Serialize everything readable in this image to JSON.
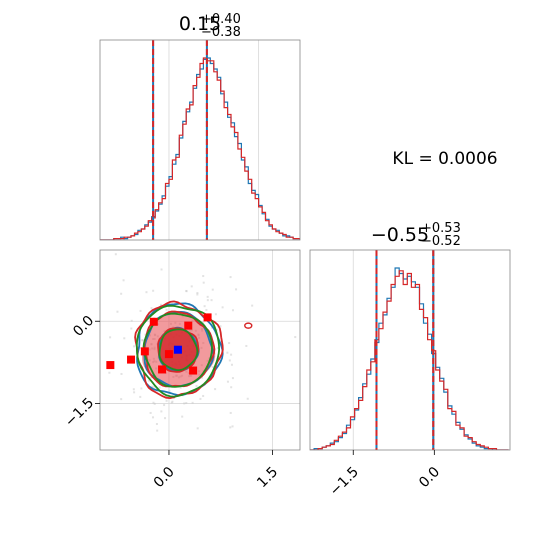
{
  "chart_data": [
    {
      "type": "histogram",
      "panel": "marginal-param-1",
      "title": {
        "median": "0.15",
        "upper": "+0.40",
        "lower": "−0.38"
      },
      "xlim": [
        -1.0,
        1.9
      ],
      "quantile_lines": [
        -0.23,
        0.55
      ],
      "grid": true,
      "series": [
        {
          "name": "",
          "color": "#1f77b4",
          "bins_x0": -1.0,
          "bin_width": 0.05,
          "values": [
            0,
            0,
            0,
            0,
            1,
            1,
            2,
            1,
            2,
            3,
            4,
            7,
            8,
            11,
            13,
            17,
            21,
            26,
            32,
            39,
            46,
            55,
            62,
            74,
            86,
            93,
            100,
            110,
            120,
            124,
            131,
            132,
            128,
            124,
            118,
            106,
            100,
            89,
            85,
            75,
            70,
            58,
            53,
            41,
            36,
            33,
            25,
            19,
            15,
            10,
            8,
            7,
            5,
            3,
            3,
            2,
            1,
            1,
            0
          ]
        },
        {
          "name": "",
          "color": "#d62728",
          "bins_x0": -1.0,
          "bin_width": 0.05,
          "values": [
            0,
            0,
            0,
            0,
            1,
            1,
            1,
            2,
            2,
            3,
            5,
            6,
            8,
            10,
            14,
            16,
            22,
            27,
            30,
            41,
            44,
            58,
            60,
            76,
            84,
            95,
            98,
            112,
            118,
            128,
            132,
            130,
            130,
            122,
            116,
            108,
            96,
            91,
            82,
            78,
            66,
            60,
            50,
            44,
            34,
            30,
            24,
            20,
            14,
            11,
            8,
            6,
            5,
            4,
            2,
            2,
            1,
            1,
            0
          ]
        }
      ]
    },
    {
      "type": "contour",
      "panel": "joint-param-1-param-2",
      "xlim": [
        -1.0,
        1.9
      ],
      "ylim": [
        -2.35,
        1.3
      ],
      "x_ticks": [
        "0.0",
        "1.5"
      ],
      "y_ticks": [
        "0.0",
        "−1.5"
      ],
      "x_tick_values": [
        0.0,
        1.5
      ],
      "y_tick_values": [
        0.0,
        -1.5
      ],
      "grid": true,
      "center": [
        0.13,
        -0.52
      ],
      "contour_colors": {
        "blue": "#1f77b4",
        "red": "#d62728",
        "green": "#228b22",
        "fill": "#e8474c"
      },
      "levels_sigma": [
        0.68,
        1.3,
        1.6
      ],
      "sigma_x": 0.38,
      "sigma_y": 0.52,
      "red_markers": [
        [
          -0.22,
          -0.01
        ],
        [
          0.28,
          -0.08
        ],
        [
          0.56,
          0.07
        ],
        [
          -0.35,
          -0.55
        ],
        [
          -0.55,
          -0.7
        ],
        [
          -0.85,
          -0.8
        ],
        [
          0.35,
          -0.9
        ],
        [
          -0.1,
          -0.88
        ],
        [
          0.0,
          -0.6
        ]
      ],
      "blue_marker": [
        0.13,
        -0.52
      ]
    },
    {
      "type": "histogram",
      "panel": "marginal-param-2",
      "title": {
        "median": "−0.55",
        "upper": "+0.53",
        "lower": "−0.52"
      },
      "xlim": [
        -2.3,
        1.4
      ],
      "x_ticks": [
        "−1.5",
        "0.0"
      ],
      "x_tick_values": [
        -1.5,
        0.0
      ],
      "quantile_lines": [
        -1.07,
        -0.02
      ],
      "grid": true,
      "series": [
        {
          "name": "",
          "color": "#1f77b4",
          "bins_x0": -2.3,
          "bin_width": 0.075,
          "values": [
            0,
            1,
            1,
            2,
            3,
            5,
            6,
            9,
            12,
            18,
            22,
            29,
            38,
            48,
            55,
            66,
            78,
            92,
            98,
            110,
            118,
            132,
            128,
            124,
            126,
            122,
            118,
            106,
            92,
            84,
            70,
            60,
            52,
            42,
            32,
            26,
            20,
            15,
            11,
            8,
            5,
            3,
            2,
            1,
            1,
            0,
            0,
            0,
            0
          ]
        },
        {
          "name": "",
          "color": "#d62728",
          "bins_x0": -2.3,
          "bin_width": 0.075,
          "values": [
            0,
            0,
            1,
            2,
            3,
            4,
            7,
            10,
            13,
            16,
            24,
            30,
            36,
            46,
            58,
            64,
            80,
            88,
            100,
            108,
            120,
            126,
            130,
            120,
            128,
            118,
            120,
            102,
            96,
            80,
            72,
            58,
            50,
            44,
            30,
            28,
            18,
            16,
            10,
            9,
            6,
            4,
            3,
            2,
            1,
            1,
            0,
            0,
            0
          ]
        }
      ]
    },
    {
      "type": "annotation",
      "panel": "kl-text",
      "text": "KL = 0.0006"
    }
  ]
}
